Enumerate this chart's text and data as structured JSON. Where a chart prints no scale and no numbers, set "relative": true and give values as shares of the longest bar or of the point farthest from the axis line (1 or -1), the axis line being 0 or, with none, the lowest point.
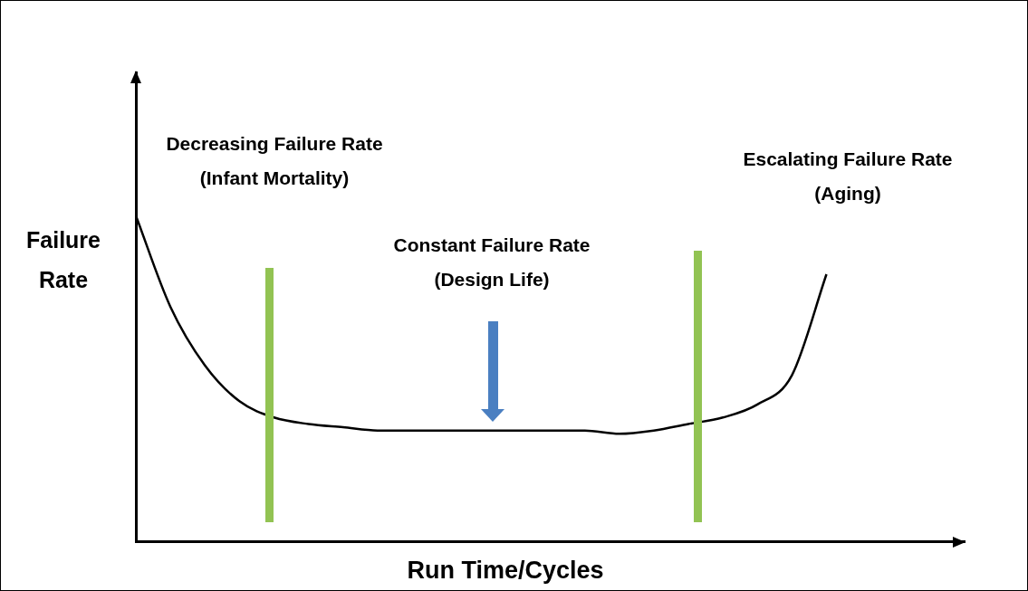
{
  "chart_data": {
    "type": "line",
    "relative": true,
    "xlabel": "Run Time/Cycles",
    "ylabel": "Failure\nRate",
    "marker": "none",
    "grid": false,
    "categories": [
      null,
      null,
      null,
      null,
      null,
      null,
      null,
      null,
      null,
      null,
      null,
      null,
      null,
      null,
      null,
      null,
      null,
      null,
      null,
      null,
      null,
      null,
      null,
      null,
      null
    ],
    "series": [
      {
        "color": "#000000",
        "values": [
          1.0,
          0.72,
          0.54,
          0.43,
          0.38,
          0.36,
          0.35,
          0.34,
          0.34,
          0.34,
          0.34,
          0.34,
          0.34,
          0.34,
          0.33,
          0.34,
          0.36,
          0.38,
          0.42,
          0.51,
          0.82,
          null,
          null,
          null,
          null
        ]
      }
    ],
    "annotations": [
      "Decreasing Failure Rate\n(Infant Mortality)",
      "Constant Failure Rate\n(Design Life)",
      "Escalating Failure Rate\n(Aging)"
    ]
  }
}
